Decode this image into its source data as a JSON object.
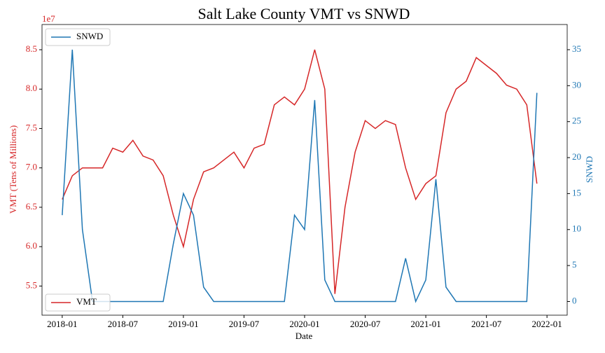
{
  "chart_data": {
    "type": "line",
    "title": "Salt Lake County VMT vs SNWD",
    "xlabel": "Date",
    "ylabel": "VMT (Tens of Millions)",
    "y2label": "SNWD",
    "y_offset_label": "1e7",
    "x": [
      "2018-01",
      "2018-02",
      "2018-03",
      "2018-04",
      "2018-05",
      "2018-06",
      "2018-07",
      "2018-08",
      "2018-09",
      "2018-10",
      "2018-11",
      "2018-12",
      "2019-01",
      "2019-02",
      "2019-03",
      "2019-04",
      "2019-05",
      "2019-06",
      "2019-07",
      "2019-08",
      "2019-09",
      "2019-10",
      "2019-11",
      "2019-12",
      "2020-01",
      "2020-02",
      "2020-03",
      "2020-04",
      "2020-05",
      "2020-06",
      "2020-07",
      "2020-08",
      "2020-09",
      "2020-10",
      "2020-11",
      "2020-12",
      "2021-01",
      "2021-02",
      "2021-03",
      "2021-04",
      "2021-05",
      "2021-06",
      "2021-07",
      "2021-08",
      "2021-09",
      "2021-10",
      "2021-11",
      "2021-12"
    ],
    "xlim": [
      "2017-11",
      "2022-03"
    ],
    "xticks": [
      "2018-01",
      "2018-07",
      "2019-01",
      "2019-07",
      "2020-01",
      "2020-07",
      "2021-01",
      "2021-07",
      "2022-01"
    ],
    "ylim": [
      5.13,
      8.82
    ],
    "yticks": [
      5.5,
      {
        "value": 6,
        "label": "6.0"
      },
      6.5,
      {
        "value": 7,
        "label": "7.0"
      },
      7.5,
      {
        "value": 8,
        "label": "8.0"
      },
      8.5
    ],
    "y2lim": [
      -1.9,
      38.5
    ],
    "y2ticks": [
      0,
      5,
      10,
      15,
      20,
      25,
      30,
      35
    ],
    "series": [
      {
        "name": "VMT",
        "color": "#d62728",
        "axis": "y",
        "legend_loc": "lower left",
        "values": [
          6.6,
          6.9,
          7.0,
          7.0,
          7.0,
          7.25,
          7.2,
          7.35,
          7.15,
          7.1,
          6.9,
          6.4,
          6.0,
          6.6,
          6.95,
          7.0,
          7.1,
          7.2,
          7.0,
          7.25,
          7.3,
          7.8,
          7.9,
          7.8,
          8.0,
          8.5,
          8.0,
          5.4,
          6.5,
          7.2,
          7.6,
          7.5,
          7.6,
          7.55,
          7.0,
          6.6,
          6.8,
          6.9,
          7.7,
          8.0,
          8.1,
          8.4,
          8.3,
          8.2,
          8.05,
          8.0,
          7.8,
          6.8
        ]
      },
      {
        "name": "SNWD",
        "color": "#1f77b4",
        "axis": "y2",
        "legend_loc": "upper left",
        "values": [
          12,
          35,
          10,
          0,
          0,
          0,
          0,
          0,
          0,
          0,
          0,
          8,
          15,
          12,
          2,
          0,
          0,
          0,
          0,
          0,
          0,
          0,
          0,
          12,
          10,
          28,
          3,
          0,
          0,
          0,
          0,
          0,
          0,
          0,
          6,
          0,
          3,
          17,
          2,
          0,
          0,
          0,
          0,
          0,
          0,
          0,
          0,
          29
        ]
      }
    ]
  }
}
